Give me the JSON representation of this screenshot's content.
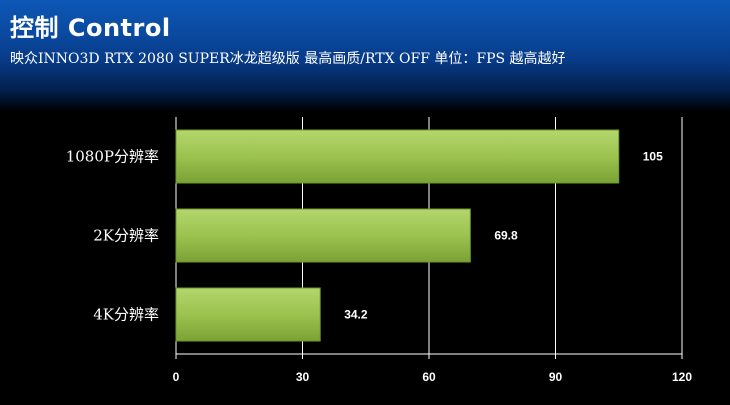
{
  "header": {
    "title": "控制 Control",
    "subtitle": "映众INNO3D RTX 2080 SUPER冰龙超级版  最高画质/RTX OFF 单位：FPS 越高越好"
  },
  "colors": {
    "bar_top": "#b4d66c",
    "bar_bottom": "#7aa235",
    "grid": "#ffffff",
    "header_blue": "#0a4aa0"
  },
  "chart_data": {
    "type": "bar",
    "orientation": "horizontal",
    "categories": [
      "1080P分辨率",
      "2K分辨率",
      "4K分辨率"
    ],
    "values": [
      105,
      69.8,
      34.2
    ],
    "value_labels": [
      "105",
      "69.8",
      "34.2"
    ],
    "xlim": [
      0,
      120
    ],
    "xticks": [
      0,
      30,
      60,
      90,
      120
    ],
    "xtick_labels": [
      "0",
      "30",
      "60",
      "90",
      "120"
    ],
    "grid": true,
    "legend": "none",
    "title": "控制 Control",
    "xlabel": "",
    "ylabel": ""
  }
}
